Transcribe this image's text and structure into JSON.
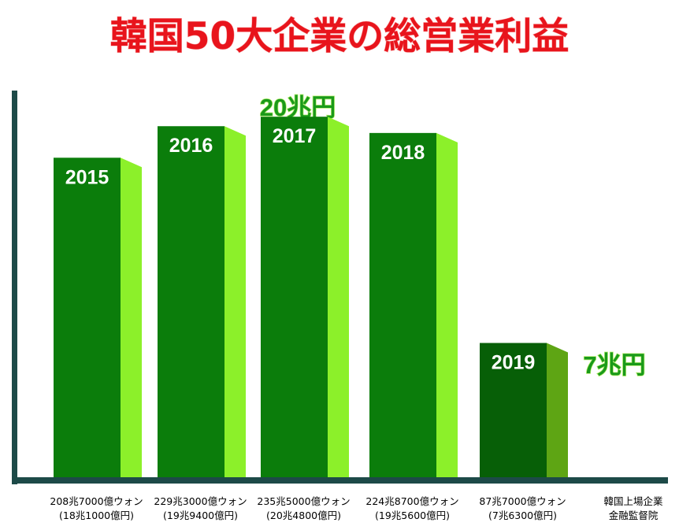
{
  "chart_data": {
    "type": "bar",
    "title": "韓国50大企業の総営業利益",
    "categories": [
      "2015",
      "2016",
      "2017",
      "2018",
      "2019"
    ],
    "values": [
      208.7,
      229.3,
      235.5,
      224.87,
      87.7
    ],
    "value_labels": [
      [
        "208兆7000億ウォン",
        "(18兆1000億円)"
      ],
      [
        "229兆3000億ウォン",
        "(19兆9400億円)"
      ],
      [
        "235兆5000億ウォン",
        "(20兆4800億円)"
      ],
      [
        "224兆8700億ウォン",
        "(19兆5600億円)"
      ],
      [
        "87兆7000億ウォン",
        "(7兆6300億円)"
      ]
    ],
    "colors": [
      "#0b7d0b",
      "#0b7d0b",
      "#0b7d0b",
      "#0b7d0b",
      "#075f07"
    ],
    "side_colors": [
      "#8cf02a",
      "#8cf02a",
      "#8cf02a",
      "#8cf02a",
      "#5ea514"
    ],
    "ylim": [
      0,
      250
    ],
    "annotations": [
      "20兆円",
      "7兆円"
    ],
    "source": [
      "韓国上場企業",
      "金融監督院"
    ]
  }
}
